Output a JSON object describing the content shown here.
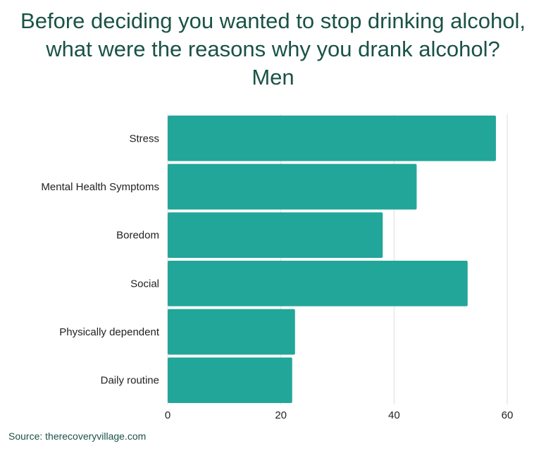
{
  "title_lines": [
    "Before deciding you wanted to stop drinking alcohol,",
    "what were the reasons why you drank alcohol?",
    "Men"
  ],
  "source": "Source: therecoveryvillage.com",
  "colors": {
    "bar": "#22a699",
    "title": "#1a5246",
    "grid": "#dddddd"
  },
  "chart_data": {
    "type": "bar",
    "orientation": "horizontal",
    "title": "Before deciding you wanted to stop drinking alcohol, what were the reasons why you drank alcohol? Men",
    "categories": [
      "Stress",
      "Mental Health Symptoms",
      "Boredom",
      "Social",
      "Physically dependent",
      "Daily routine"
    ],
    "values": [
      58,
      44,
      38,
      53,
      22.5,
      22
    ],
    "xlim": [
      0,
      60
    ],
    "xticks": [
      0,
      20,
      40,
      60
    ],
    "grid": true,
    "legend": "none"
  }
}
